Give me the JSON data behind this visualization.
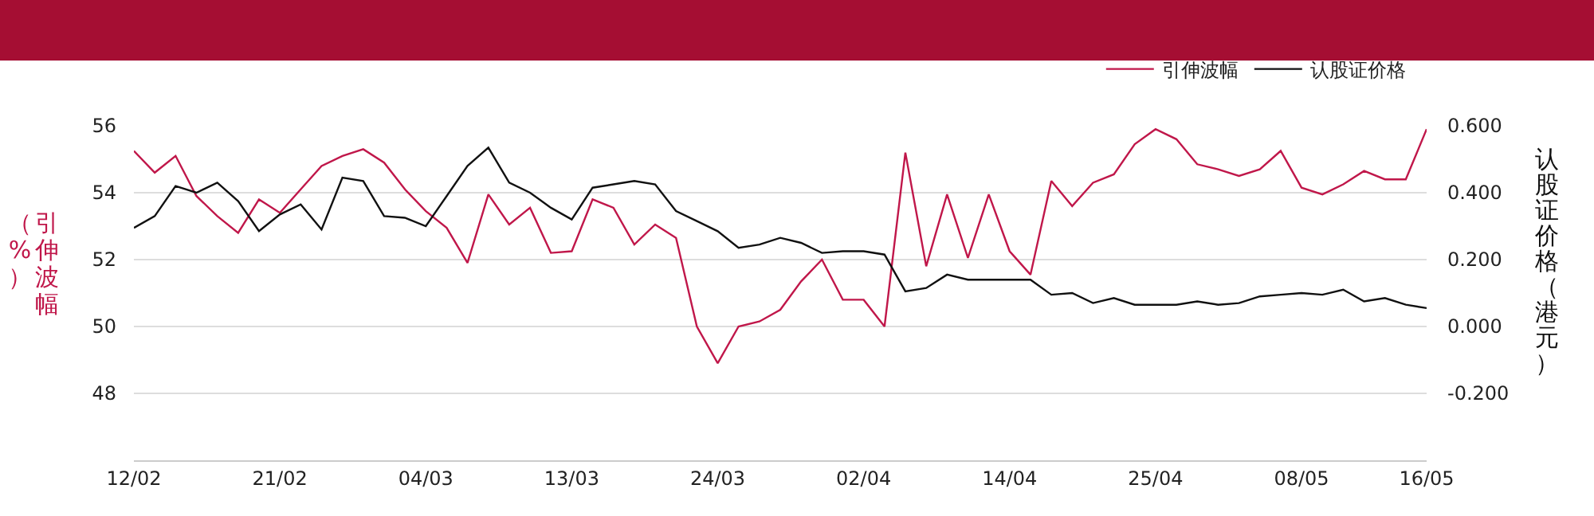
{
  "chart_data": {
    "type": "line",
    "ylabel": "引伸波幅（%）",
    "y2label": "认股证价格（港元）",
    "categories": [
      "12/02",
      null,
      null,
      null,
      null,
      null,
      null,
      "21/02",
      null,
      null,
      null,
      null,
      null,
      null,
      "04/03",
      null,
      null,
      null,
      null,
      null,
      null,
      "13/03",
      null,
      null,
      null,
      null,
      null,
      null,
      "24/03",
      null,
      null,
      null,
      null,
      null,
      null,
      "02/04",
      null,
      null,
      null,
      null,
      null,
      null,
      "14/04",
      null,
      null,
      null,
      null,
      null,
      null,
      "25/04",
      null,
      null,
      null,
      null,
      null,
      null,
      "08/05",
      null,
      null,
      null,
      null,
      null,
      "16/05"
    ],
    "series": [
      {
        "name": "引伸波幅",
        "color": "#c0174a",
        "values": [
          55.25,
          54.6,
          55.1,
          53.9,
          53.3,
          52.8,
          53.8,
          53.4,
          54.1,
          54.8,
          55.1,
          55.3,
          54.9,
          54.1,
          53.45,
          52.95,
          51.9,
          53.95,
          53.05,
          53.55,
          52.2,
          52.25,
          53.8,
          53.55,
          52.45,
          53.05,
          52.65,
          50,
          48.9,
          50,
          50.15,
          50.5,
          51.35,
          52,
          50.8,
          50.8,
          50,
          55.2,
          51.8,
          53.95,
          52.05,
          53.95,
          52.25,
          51.55,
          54.35,
          53.6,
          54.3,
          54.55,
          55.45,
          55.9,
          55.6,
          54.85,
          54.7,
          54.5,
          54.7,
          55.25,
          54.15,
          53.95,
          54.25,
          54.65,
          54.4,
          54.4,
          55.9
        ]
      },
      {
        "name": "认股证价格",
        "color": "#111111",
        "axis": "y2",
        "values": [
          0.295,
          0.33,
          0.42,
          0.4,
          0.43,
          0.375,
          0.285,
          0.335,
          0.365,
          0.29,
          0.445,
          0.435,
          0.33,
          0.325,
          0.3,
          0.39,
          0.48,
          0.535,
          0.43,
          0.4,
          0.355,
          0.32,
          0.415,
          0.425,
          0.435,
          0.425,
          0.345,
          0.315,
          0.285,
          0.235,
          0.245,
          0.265,
          0.25,
          0.22,
          0.225,
          0.225,
          0.215,
          0.105,
          0.115,
          0.155,
          0.14,
          0.14,
          0.14,
          0.14,
          0.095,
          0.1,
          0.07,
          0.085,
          0.065,
          0.065,
          0.065,
          0.075,
          0.065,
          0.07,
          0.09,
          0.095,
          0.1,
          0.095,
          0.11,
          0.075,
          0.085,
          0.065,
          0.055
        ]
      }
    ],
    "ylim": [
      46,
      56
    ],
    "yticks": [
      48,
      50,
      52,
      54,
      56
    ],
    "y2lim": [
      -0.4,
      0.6
    ],
    "y2ticks": [
      {
        "value": -0.2,
        "label": "-0.200"
      },
      {
        "value": 0,
        "label": "0.000"
      },
      {
        "value": 0.2,
        "label": "0.200"
      },
      {
        "value": 0.4,
        "label": "0.400"
      },
      {
        "value": 0.6,
        "label": "0.600"
      }
    ],
    "grid": "y",
    "legend": "top right",
    "marker": "none",
    "line_style": "solid"
  }
}
